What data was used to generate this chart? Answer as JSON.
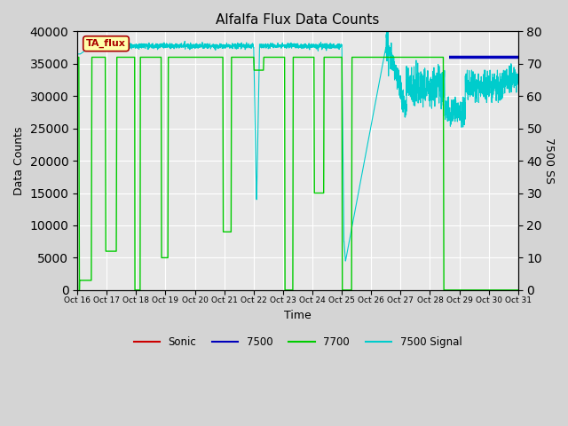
{
  "title": "Alfalfa Flux Data Counts",
  "ylabel_left": "Data Counts",
  "ylabel_right": "7500 SS",
  "xlabel": "Time",
  "ylim_left": [
    0,
    40000
  ],
  "ylim_right": [
    0,
    80
  ],
  "xtick_labels": [
    "Oct 16",
    "Oct 17",
    "Oct 18",
    "Oct 19",
    "Oct 20",
    "Oct 21",
    "Oct 22",
    "Oct 23",
    "Oct 24",
    "Oct 25",
    "Oct 26",
    "Oct 27",
    "Oct 28",
    "Oct 29",
    "Oct 30",
    "Oct 31"
  ],
  "yticks_left": [
    0,
    5000,
    10000,
    15000,
    20000,
    25000,
    30000,
    35000,
    40000
  ],
  "yticks_right": [
    0,
    10,
    20,
    30,
    40,
    50,
    60,
    70,
    80
  ],
  "fig_bg_color": "#d4d4d4",
  "plot_bg_color": "#e8e8e8",
  "grid_color": "#ffffff",
  "colors": {
    "sonic": "#cc0000",
    "c7500": "#0000bb",
    "c7700": "#00cc00",
    "signal": "#00cccc"
  },
  "ta_flux_label": "TA_flux",
  "ta_flux_box_color": "#ffffaa",
  "ta_flux_text_color": "#aa0000",
  "ta_flux_border_color": "#aa0000",
  "n_days": 15,
  "baseline_7700": 36000,
  "baseline_signal": 75
}
